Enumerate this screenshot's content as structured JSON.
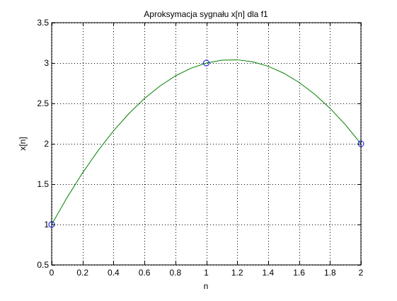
{
  "chart_data": {
    "type": "line",
    "title": "Aproksymacja sygnału x[n] dla f1",
    "xlabel": "n",
    "ylabel": "x[n]",
    "xlim": [
      0,
      2
    ],
    "ylim": [
      0.5,
      3.5
    ],
    "xticks": [
      0,
      0.2,
      0.4,
      0.6,
      0.8,
      1,
      1.2,
      1.4,
      1.6,
      1.8,
      2
    ],
    "xtick_labels": [
      "0",
      "0.2",
      "0.4",
      "0.6",
      "0.8",
      "1",
      "1.2",
      "1.4",
      "1.6",
      "1.8",
      "2"
    ],
    "yticks": [
      0.5,
      1,
      1.5,
      2,
      2.5,
      3,
      3.5
    ],
    "ytick_labels": [
      "0.5",
      "1",
      "1.5",
      "2",
      "2.5",
      "3",
      "3.5"
    ],
    "grid": true,
    "grid_style": "dotted",
    "series": [
      {
        "kind": "line",
        "color": "#008000",
        "x": [
          0,
          0.1,
          0.2,
          0.3,
          0.4,
          0.5,
          0.6,
          0.7,
          0.8,
          0.9,
          1.0,
          1.1,
          1.2,
          1.3,
          1.4,
          1.5,
          1.6,
          1.7,
          1.8,
          1.9,
          2.0
        ],
        "y": [
          1.0,
          1.335,
          1.64,
          1.915,
          2.16,
          2.375,
          2.56,
          2.715,
          2.84,
          2.935,
          3.0,
          3.035,
          3.04,
          3.015,
          2.96,
          2.875,
          2.76,
          2.615,
          2.44,
          2.235,
          2.0
        ]
      },
      {
        "kind": "markers",
        "marker": "circle",
        "color": "#0000ff",
        "x": [
          0,
          1,
          2
        ],
        "y": [
          1,
          3,
          2
        ]
      }
    ]
  }
}
